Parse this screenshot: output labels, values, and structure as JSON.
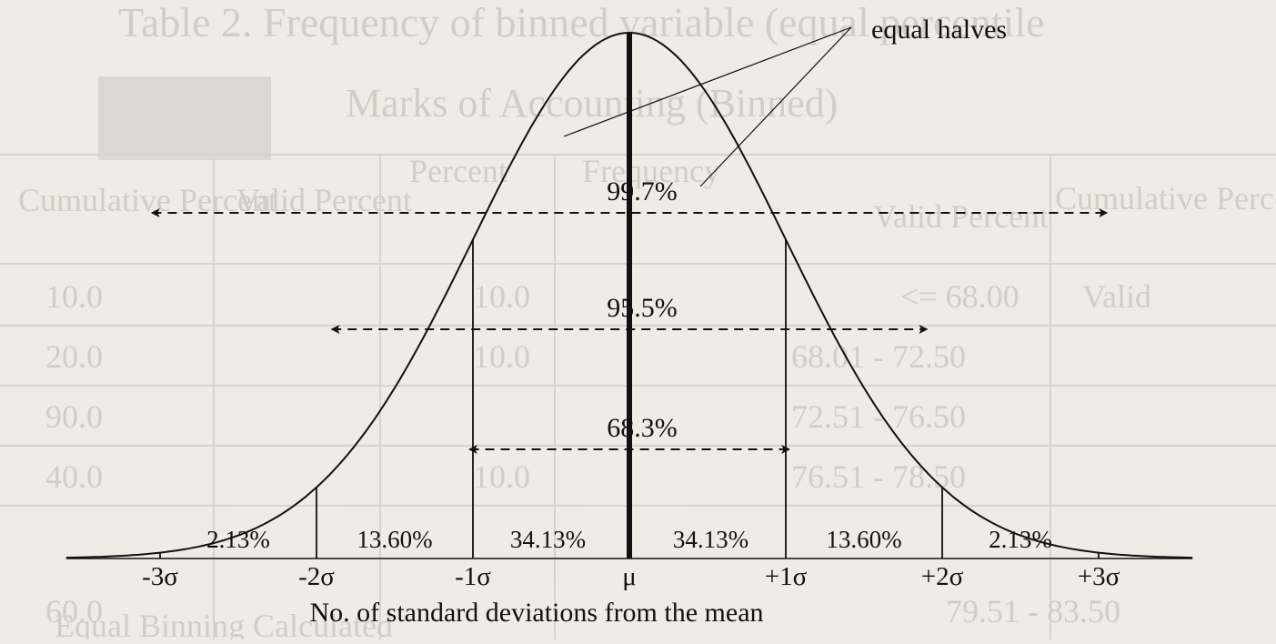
{
  "diagram": {
    "callout": "equal halves",
    "ranges": [
      {
        "label": "99.7%",
        "from": -3,
        "to": 3
      },
      {
        "label": "95.5%",
        "from": -2,
        "to": 2
      },
      {
        "label": "68.3%",
        "from": -1,
        "to": 1
      }
    ],
    "segments": [
      "2.13%",
      "13.60%",
      "34.13%",
      "34.13%",
      "13.60%",
      "2.13%"
    ],
    "ticks": [
      "-3σ",
      "-2σ",
      "-1σ",
      "μ",
      "+1σ",
      "+2σ",
      "+3σ"
    ],
    "axis_title": "No. of standard deviations from the mean"
  },
  "background_bleed": {
    "title": "Table 2. Frequency of binned variable (equal percentile",
    "subtitle": "Marks of Accounting (Binned)",
    "headers": [
      "Cumulative Percent",
      "Valid Percent",
      "Percent",
      "Frequency",
      "Valid Percent",
      "Cumulative Percent"
    ],
    "row_labels": [
      "Valid",
      "<= 68.00",
      "68.01 - 72.50",
      "72.51 - 76.50",
      "76.51 - 78.50",
      "79.51 - 83.50"
    ],
    "values": [
      "10.0",
      "20.0",
      "90.0",
      "40.0",
      "60.0",
      "10.0",
      "10.0",
      "10.0"
    ],
    "footer": "Equal Binning Calculated"
  }
}
